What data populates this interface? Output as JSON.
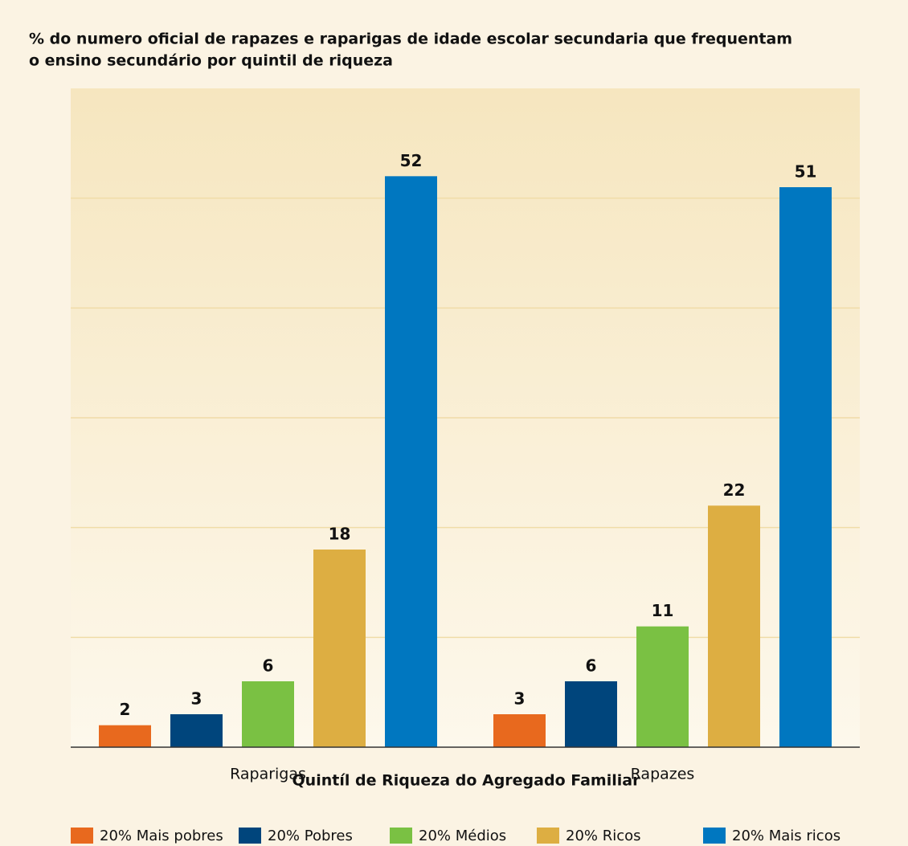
{
  "chart_data": {
    "type": "bar",
    "title": [
      "% do numero oficial de rapazes e raparigas de idade escolar secundaria que frequentam",
      "o ensino secundário por quintil de riqueza"
    ],
    "xlabel": "Quintíl de Riqueza do Agregado Familiar",
    "categories": [
      "Raparigas",
      "Rapazes"
    ],
    "series": [
      {
        "name": "20% Mais pobres",
        "color": "#e8691e",
        "values": [
          2,
          3
        ]
      },
      {
        "name": "20% Pobres",
        "color": "#00457c",
        "values": [
          3,
          6
        ]
      },
      {
        "name": "20% Médios",
        "color": "#7ac143",
        "values": [
          6,
          11
        ]
      },
      {
        "name": "20% Ricos",
        "color": "#ddae42",
        "values": [
          18,
          22
        ]
      },
      {
        "name": "20% Mais ricos",
        "color": "#0077c0",
        "values": [
          52,
          51
        ]
      }
    ],
    "ylim": [
      0,
      60
    ],
    "yticks": [
      0,
      10,
      20,
      30,
      40,
      50,
      60
    ],
    "grid": true
  }
}
